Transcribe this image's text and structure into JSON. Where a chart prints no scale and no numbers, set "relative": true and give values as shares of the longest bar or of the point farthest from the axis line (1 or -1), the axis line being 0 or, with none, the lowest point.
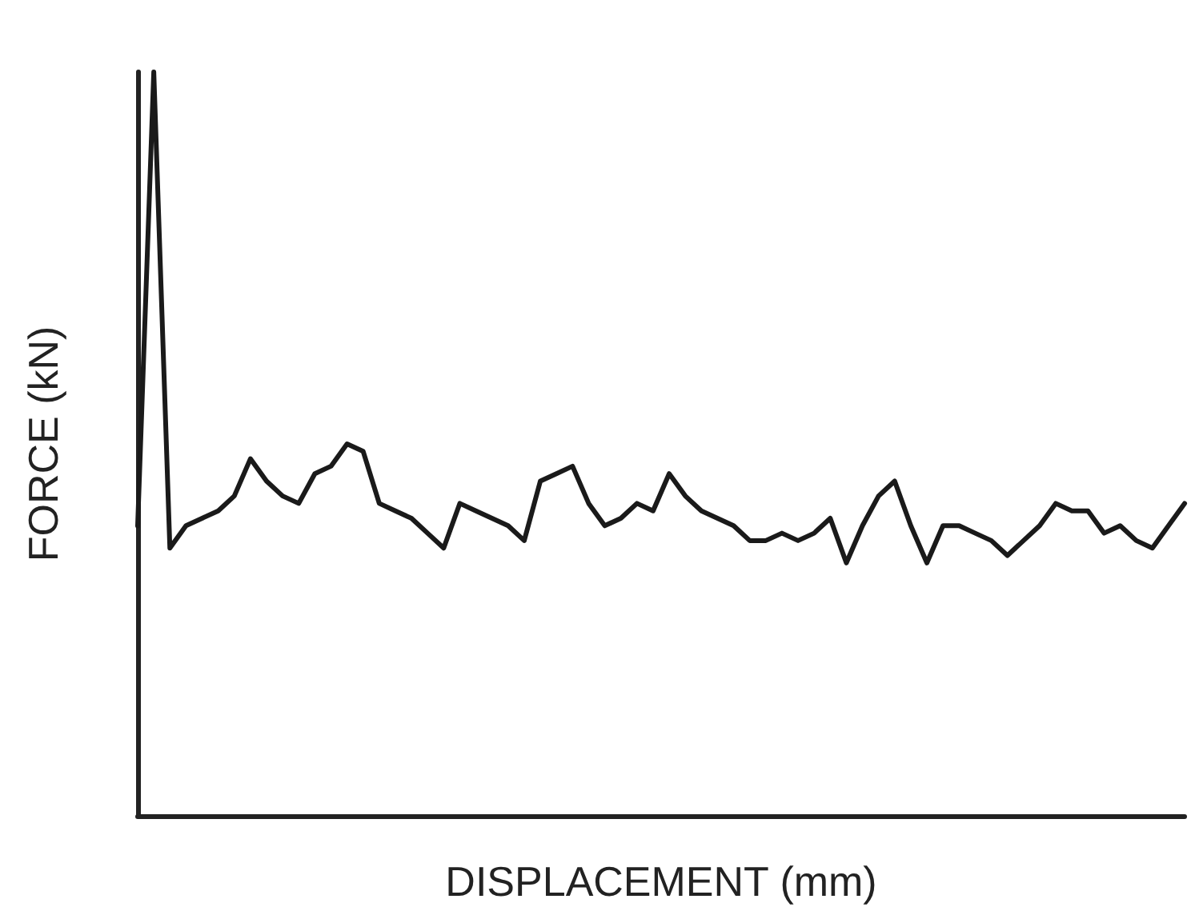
{
  "chart_data": {
    "type": "line",
    "relative": true,
    "xlabel": "DISPLACEMENT (mm)",
    "ylabel": "FORCE (kN)",
    "grid": false,
    "marker": "none",
    "line_style": "solid",
    "categories": [
      null,
      null,
      null,
      null,
      null,
      null,
      null,
      null,
      null,
      null,
      null,
      null,
      null,
      null,
      null,
      null,
      null,
      null,
      null,
      null,
      null,
      null,
      null,
      null,
      null,
      null,
      null,
      null,
      null,
      null,
      null,
      null,
      null,
      null,
      null,
      null,
      null,
      null,
      null,
      null,
      null,
      null,
      null,
      null,
      null,
      null,
      null,
      null,
      null,
      null,
      null,
      null,
      null,
      null,
      null,
      null,
      null,
      null,
      null,
      null,
      null,
      null,
      null,
      null,
      null,
      null
    ],
    "series": [
      {
        "color": "#1a1a1a",
        "values": [
          0.39,
          1,
          0.36,
          0.39,
          0.4,
          0.41,
          0.43,
          0.48,
          0.45,
          0.43,
          0.42,
          0.46,
          0.47,
          0.5,
          0.49,
          0.42,
          0.41,
          0.4,
          0.38,
          0.36,
          0.42,
          0.41,
          0.4,
          0.39,
          0.37,
          0.45,
          0.46,
          0.47,
          0.42,
          0.39,
          0.4,
          0.42,
          0.41,
          0.46,
          0.43,
          0.41,
          0.4,
          0.39,
          0.37,
          0.37,
          0.38,
          0.37,
          0.38,
          0.4,
          0.34,
          0.39,
          0.43,
          0.45,
          0.39,
          0.34,
          0.39,
          0.39,
          0.38,
          0.37,
          0.35,
          0.37,
          0.39,
          0.42,
          0.41,
          0.41,
          0.38,
          0.39,
          0.37,
          0.36,
          0.39,
          0.42
        ]
      }
    ]
  }
}
